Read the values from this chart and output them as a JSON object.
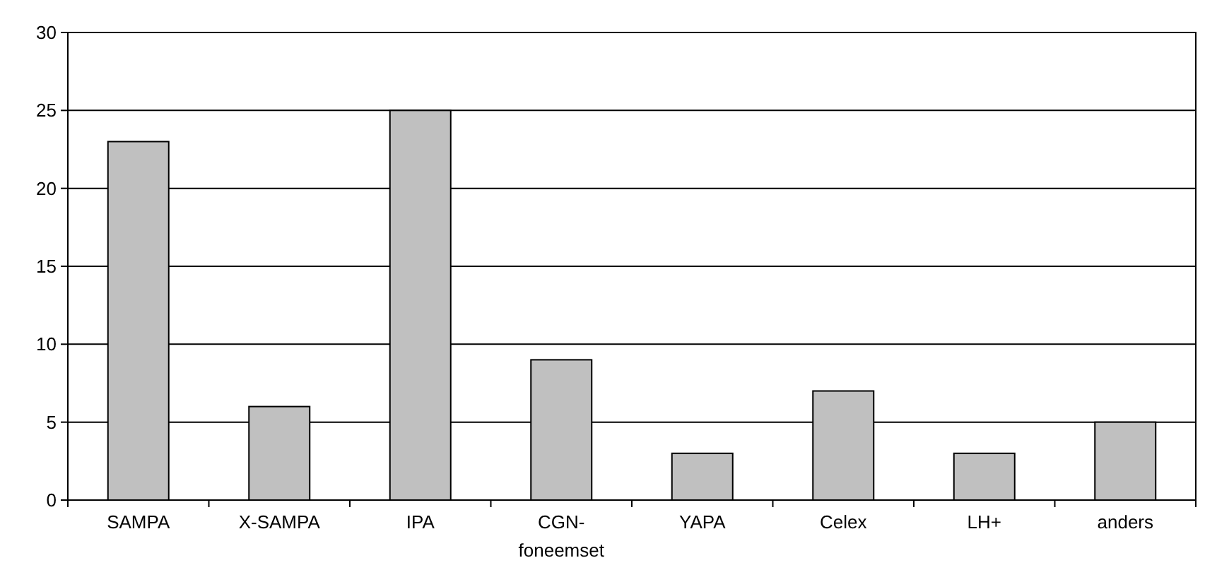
{
  "chart_data": {
    "type": "bar",
    "categories": [
      "SAMPA",
      "X-SAMPA",
      "IPA",
      "CGN-foneemset",
      "YAPA",
      "Celex",
      "LH+",
      "anders"
    ],
    "values": [
      23,
      6,
      25,
      9,
      3,
      7,
      3,
      5
    ],
    "color": "#c0c0c0",
    "ylim": [
      0,
      30
    ],
    "yticks": [
      0,
      5,
      10,
      15,
      20,
      25,
      30
    ],
    "grid": "y"
  }
}
